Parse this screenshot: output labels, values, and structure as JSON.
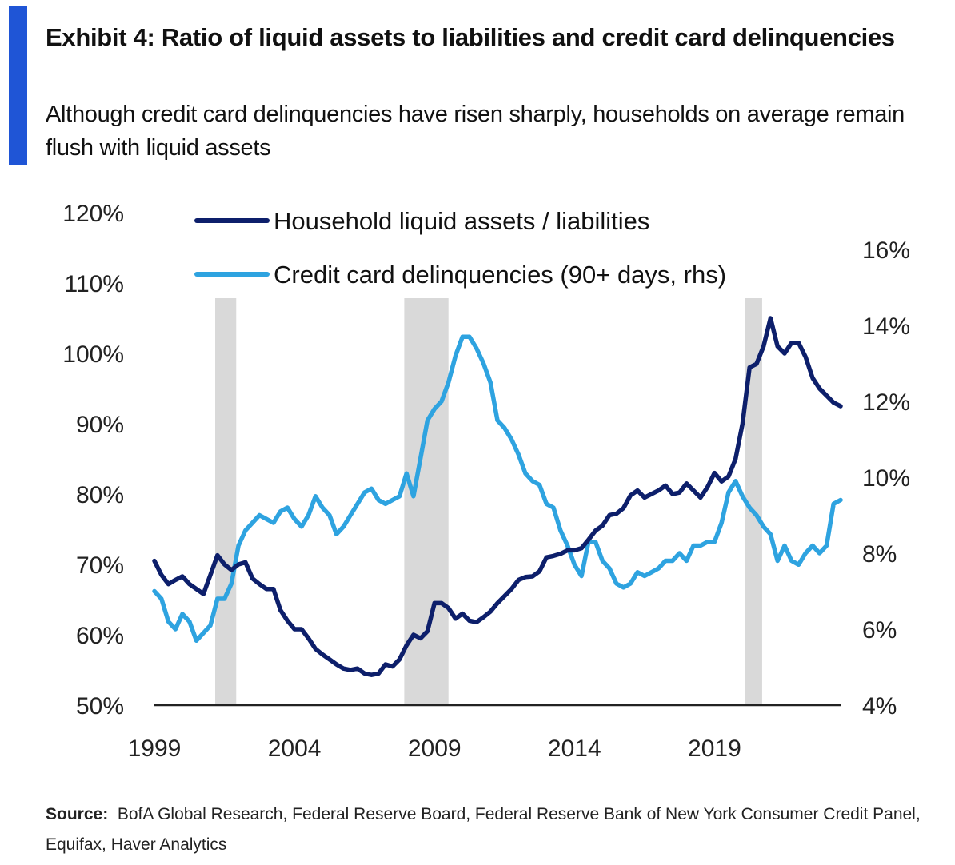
{
  "header": {
    "title": "Exhibit 4: Ratio of liquid assets to liabilities and credit card delinquencies",
    "subtitle": "Although credit card delinquencies have risen sharply, households on average remain flush with liquid assets"
  },
  "footer": {
    "source_label": "Source:",
    "source_text": "BofA Global Research, Federal Reserve Board, Federal Reserve Bank of New York Consumer Credit Panel, Equifax, Haver Analytics"
  },
  "colors": {
    "accent": "#1f55d6",
    "series_liquid": "#0d1f6b",
    "series_delinq": "#2ea3e0",
    "recession": "#d9d9d9"
  },
  "chart_data": {
    "type": "line",
    "x_label": "",
    "x_ticks": [
      "1999",
      "2004",
      "2009",
      "2014",
      "2019"
    ],
    "x_range": [
      1999,
      2023.5
    ],
    "y_left": {
      "label": "",
      "range": [
        50,
        120
      ],
      "ticks": [
        "50%",
        "60%",
        "70%",
        "80%",
        "90%",
        "100%",
        "110%",
        "120%"
      ]
    },
    "y_right": {
      "label": "",
      "range": [
        4,
        16
      ],
      "ticks": [
        "4%",
        "6%",
        "8%",
        "10%",
        "12%",
        "14%",
        "16%"
      ]
    },
    "legend": {
      "placement": "top-center"
    },
    "recessions": [
      [
        2001.17,
        2001.92
      ],
      [
        2007.92,
        2009.5
      ],
      [
        2020.1,
        2020.7
      ]
    ],
    "series": [
      {
        "name": "Household liquid assets / liabilities",
        "axis": "left",
        "points": [
          [
            1999.0,
            70.5
          ],
          [
            1999.25,
            68.5
          ],
          [
            1999.5,
            67.2
          ],
          [
            1999.75,
            67.8
          ],
          [
            2000.0,
            68.3
          ],
          [
            2000.25,
            67.2
          ],
          [
            2000.5,
            66.5
          ],
          [
            2000.75,
            65.8
          ],
          [
            2001.0,
            68.5
          ],
          [
            2001.25,
            71.3
          ],
          [
            2001.5,
            70.0
          ],
          [
            2001.75,
            69.2
          ],
          [
            2002.0,
            70.0
          ],
          [
            2002.25,
            70.3
          ],
          [
            2002.5,
            68.0
          ],
          [
            2002.75,
            67.2
          ],
          [
            2003.0,
            66.5
          ],
          [
            2003.25,
            66.5
          ],
          [
            2003.5,
            63.5
          ],
          [
            2003.75,
            62.0
          ],
          [
            2004.0,
            60.8
          ],
          [
            2004.25,
            60.8
          ],
          [
            2004.5,
            59.5
          ],
          [
            2004.75,
            58.0
          ],
          [
            2005.0,
            57.2
          ],
          [
            2005.25,
            56.5
          ],
          [
            2005.5,
            55.8
          ],
          [
            2005.75,
            55.2
          ],
          [
            2006.0,
            55.0
          ],
          [
            2006.25,
            55.2
          ],
          [
            2006.5,
            54.5
          ],
          [
            2006.75,
            54.3
          ],
          [
            2007.0,
            54.5
          ],
          [
            2007.25,
            55.8
          ],
          [
            2007.5,
            55.5
          ],
          [
            2007.75,
            56.5
          ],
          [
            2008.0,
            58.5
          ],
          [
            2008.25,
            60.0
          ],
          [
            2008.5,
            59.5
          ],
          [
            2008.75,
            60.5
          ],
          [
            2009.0,
            64.5
          ],
          [
            2009.25,
            64.5
          ],
          [
            2009.5,
            63.8
          ],
          [
            2009.75,
            62.3
          ],
          [
            2010.0,
            63.0
          ],
          [
            2010.25,
            62.0
          ],
          [
            2010.5,
            61.8
          ],
          [
            2010.75,
            62.5
          ],
          [
            2011.0,
            63.3
          ],
          [
            2011.25,
            64.5
          ],
          [
            2011.5,
            65.5
          ],
          [
            2011.75,
            66.5
          ],
          [
            2012.0,
            67.8
          ],
          [
            2012.25,
            68.2
          ],
          [
            2012.5,
            68.3
          ],
          [
            2012.75,
            69.0
          ],
          [
            2013.0,
            71.0
          ],
          [
            2013.25,
            71.2
          ],
          [
            2013.5,
            71.5
          ],
          [
            2013.75,
            72.0
          ],
          [
            2014.0,
            72.0
          ],
          [
            2014.25,
            72.3
          ],
          [
            2014.5,
            73.5
          ],
          [
            2014.75,
            74.8
          ],
          [
            2015.0,
            75.5
          ],
          [
            2015.25,
            77.0
          ],
          [
            2015.5,
            77.2
          ],
          [
            2015.75,
            78.0
          ],
          [
            2016.0,
            79.8
          ],
          [
            2016.25,
            80.5
          ],
          [
            2016.5,
            79.5
          ],
          [
            2016.75,
            80.0
          ],
          [
            2017.0,
            80.5
          ],
          [
            2017.25,
            81.2
          ],
          [
            2017.5,
            80.0
          ],
          [
            2017.75,
            80.2
          ],
          [
            2018.0,
            81.5
          ],
          [
            2018.25,
            80.5
          ],
          [
            2018.5,
            79.5
          ],
          [
            2018.75,
            81.0
          ],
          [
            2019.0,
            83.0
          ],
          [
            2019.25,
            81.8
          ],
          [
            2019.5,
            82.5
          ],
          [
            2019.75,
            85.0
          ],
          [
            2020.0,
            90.0
          ],
          [
            2020.25,
            98.0
          ],
          [
            2020.5,
            98.5
          ],
          [
            2020.75,
            101.0
          ],
          [
            2021.0,
            105.0
          ],
          [
            2021.25,
            101.0
          ],
          [
            2021.5,
            100.0
          ],
          [
            2021.75,
            101.5
          ],
          [
            2022.0,
            101.5
          ],
          [
            2022.25,
            99.5
          ],
          [
            2022.5,
            96.5
          ],
          [
            2022.75,
            95.0
          ],
          [
            2023.0,
            94.0
          ],
          [
            2023.25,
            93.0
          ],
          [
            2023.5,
            92.5
          ]
        ]
      },
      {
        "name": "Credit card delinquencies (90+ days, rhs)",
        "axis": "right",
        "points": [
          [
            1999.0,
            7.0
          ],
          [
            1999.25,
            6.8
          ],
          [
            1999.5,
            6.2
          ],
          [
            1999.75,
            6.0
          ],
          [
            2000.0,
            6.4
          ],
          [
            2000.25,
            6.2
          ],
          [
            2000.5,
            5.7
          ],
          [
            2000.75,
            5.9
          ],
          [
            2001.0,
            6.1
          ],
          [
            2001.25,
            6.8
          ],
          [
            2001.5,
            6.8
          ],
          [
            2001.75,
            7.2
          ],
          [
            2002.0,
            8.2
          ],
          [
            2002.25,
            8.6
          ],
          [
            2002.5,
            8.8
          ],
          [
            2002.75,
            9.0
          ],
          [
            2003.0,
            8.9
          ],
          [
            2003.25,
            8.8
          ],
          [
            2003.5,
            9.1
          ],
          [
            2003.75,
            9.2
          ],
          [
            2004.0,
            8.9
          ],
          [
            2004.25,
            8.7
          ],
          [
            2004.5,
            9.0
          ],
          [
            2004.75,
            9.5
          ],
          [
            2005.0,
            9.2
          ],
          [
            2005.25,
            9.0
          ],
          [
            2005.5,
            8.5
          ],
          [
            2005.75,
            8.7
          ],
          [
            2006.0,
            9.0
          ],
          [
            2006.25,
            9.3
          ],
          [
            2006.5,
            9.6
          ],
          [
            2006.75,
            9.7
          ],
          [
            2007.0,
            9.4
          ],
          [
            2007.25,
            9.3
          ],
          [
            2007.5,
            9.4
          ],
          [
            2007.75,
            9.5
          ],
          [
            2008.0,
            10.1
          ],
          [
            2008.25,
            9.5
          ],
          [
            2008.5,
            10.5
          ],
          [
            2008.75,
            11.5
          ],
          [
            2009.0,
            11.8
          ],
          [
            2009.25,
            12.0
          ],
          [
            2009.5,
            12.5
          ],
          [
            2009.75,
            13.2
          ],
          [
            2010.0,
            13.7
          ],
          [
            2010.25,
            13.7
          ],
          [
            2010.5,
            13.4
          ],
          [
            2010.75,
            13.0
          ],
          [
            2011.0,
            12.5
          ],
          [
            2011.25,
            11.5
          ],
          [
            2011.5,
            11.3
          ],
          [
            2011.75,
            11.0
          ],
          [
            2012.0,
            10.6
          ],
          [
            2012.25,
            10.1
          ],
          [
            2012.5,
            9.9
          ],
          [
            2012.75,
            9.8
          ],
          [
            2013.0,
            9.3
          ],
          [
            2013.25,
            9.2
          ],
          [
            2013.5,
            8.6
          ],
          [
            2013.75,
            8.2
          ],
          [
            2014.0,
            7.7
          ],
          [
            2014.25,
            7.4
          ],
          [
            2014.5,
            8.3
          ],
          [
            2014.75,
            8.3
          ],
          [
            2015.0,
            7.8
          ],
          [
            2015.25,
            7.6
          ],
          [
            2015.5,
            7.2
          ],
          [
            2015.75,
            7.1
          ],
          [
            2016.0,
            7.2
          ],
          [
            2016.25,
            7.5
          ],
          [
            2016.5,
            7.4
          ],
          [
            2016.75,
            7.5
          ],
          [
            2017.0,
            7.6
          ],
          [
            2017.25,
            7.8
          ],
          [
            2017.5,
            7.8
          ],
          [
            2017.75,
            8.0
          ],
          [
            2018.0,
            7.8
          ],
          [
            2018.25,
            8.2
          ],
          [
            2018.5,
            8.2
          ],
          [
            2018.75,
            8.3
          ],
          [
            2019.0,
            8.3
          ],
          [
            2019.25,
            8.8
          ],
          [
            2019.5,
            9.6
          ],
          [
            2019.75,
            9.9
          ],
          [
            2020.0,
            9.5
          ],
          [
            2020.25,
            9.2
          ],
          [
            2020.5,
            9.0
          ],
          [
            2020.75,
            8.7
          ],
          [
            2021.0,
            8.5
          ],
          [
            2021.25,
            7.8
          ],
          [
            2021.5,
            8.2
          ],
          [
            2021.75,
            7.8
          ],
          [
            2022.0,
            7.7
          ],
          [
            2022.25,
            8.0
          ],
          [
            2022.5,
            8.2
          ],
          [
            2022.75,
            8.0
          ],
          [
            2023.0,
            8.2
          ],
          [
            2023.25,
            9.3
          ],
          [
            2023.5,
            9.4
          ]
        ]
      }
    ]
  }
}
